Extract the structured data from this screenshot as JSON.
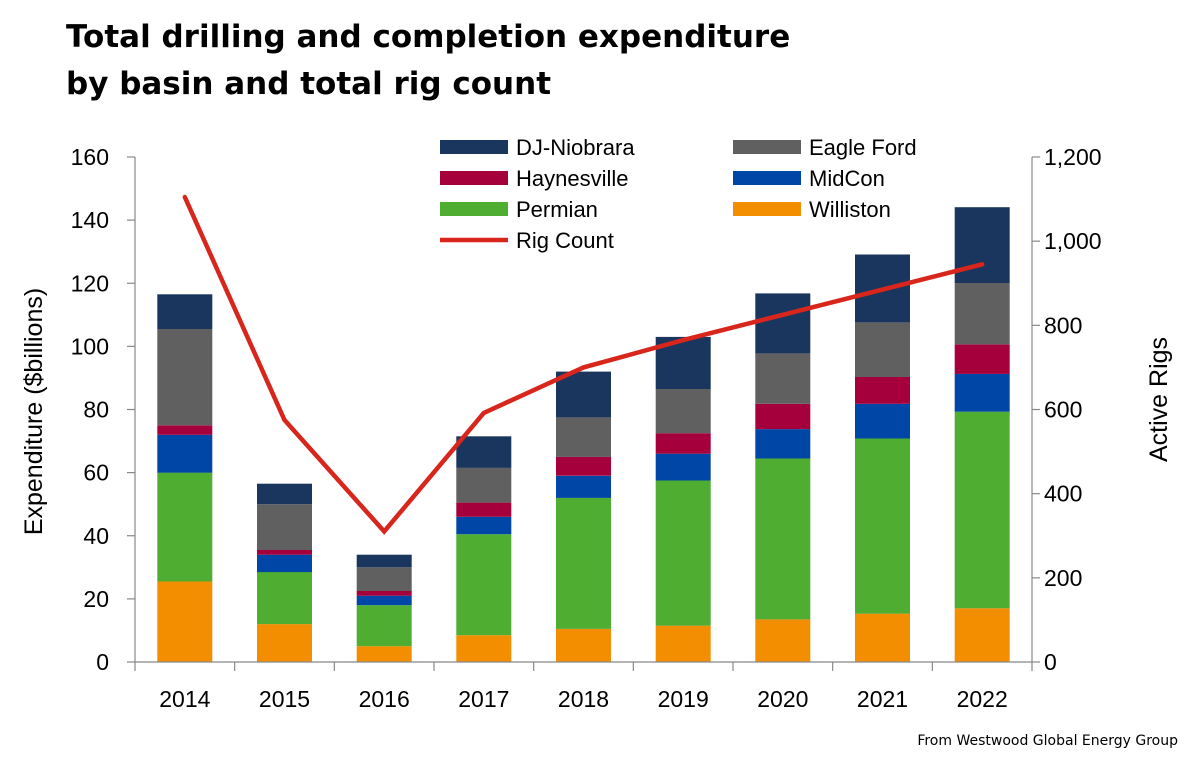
{
  "title": {
    "line1": "Total drilling and completion expenditure",
    "line2": "by basin and total rig count"
  },
  "source": "From Westwood Global Energy Group",
  "chart_data": {
    "type": "bar",
    "stacked": true,
    "categories": [
      "2014",
      "2015",
      "2016",
      "2017",
      "2018",
      "2019",
      "2020",
      "2021",
      "2022"
    ],
    "ylabel": "Expenditure ($billions)",
    "y2label": "Active Rigs",
    "ylim": [
      0,
      160
    ],
    "y2lim": [
      0,
      1200
    ],
    "yticks": [
      "0",
      "20",
      "40",
      "60",
      "80",
      "100",
      "120",
      "140",
      "160"
    ],
    "y2ticks": [
      "0",
      "200",
      "400",
      "600",
      "800",
      "1,000",
      "1,200"
    ],
    "legend_position": "top",
    "series": [
      {
        "name": "Williston",
        "color": "#f28e00",
        "values": [
          25.5,
          12,
          5,
          8.5,
          10.5,
          11.5,
          13.5,
          15.3,
          17
        ]
      },
      {
        "name": "Permian",
        "color": "#4fad32",
        "values": [
          34.5,
          16.5,
          13,
          32,
          41.5,
          46,
          51,
          55.5,
          62.3
        ]
      },
      {
        "name": "MidCon",
        "color": "#0046a6",
        "values": [
          12,
          5.5,
          3,
          5.5,
          7,
          8.5,
          9.3,
          11,
          12
        ]
      },
      {
        "name": "Haynesville",
        "color": "#a6003c",
        "values": [
          3,
          1.5,
          1.5,
          4.5,
          6,
          6.5,
          8,
          8.5,
          9.3
        ]
      },
      {
        "name": "Eagle Ford",
        "color": "#606060",
        "values": [
          30.5,
          14.5,
          7.5,
          11,
          12.5,
          14,
          16,
          17.3,
          19.5
        ]
      },
      {
        "name": "DJ-Niobrara",
        "color": "#1b365e",
        "values": [
          11,
          6.5,
          4,
          10,
          14.5,
          16.5,
          19,
          21.5,
          24
        ]
      }
    ],
    "line_series": {
      "name": "Rig Count",
      "color": "#d9261c",
      "axis": "right",
      "values": [
        1105,
        575,
        310,
        592,
        700,
        765,
        825,
        885,
        945
      ]
    }
  }
}
